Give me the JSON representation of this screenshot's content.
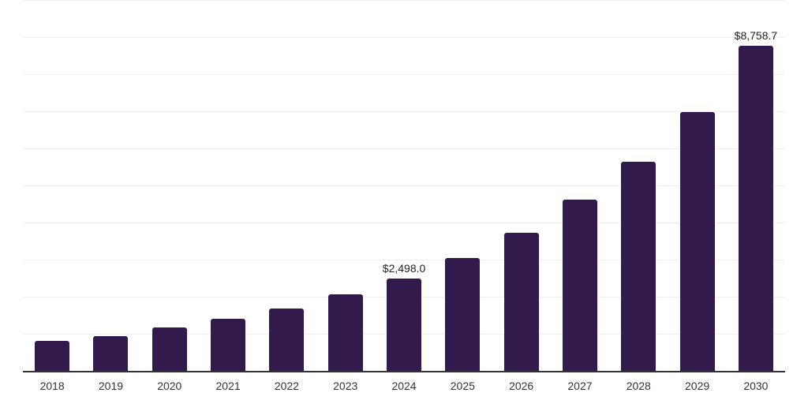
{
  "chart_data": {
    "type": "bar",
    "title": "",
    "xlabel": "",
    "ylabel": "",
    "categories": [
      "2018",
      "2019",
      "2020",
      "2021",
      "2022",
      "2023",
      "2024",
      "2025",
      "2026",
      "2027",
      "2028",
      "2029",
      "2030"
    ],
    "values": [
      810,
      940,
      1170,
      1410,
      1690,
      2070,
      2498.0,
      3050,
      3730,
      4610,
      5650,
      6980,
      8758.7
    ],
    "data_labels": [
      "",
      "",
      "",
      "",
      "",
      "",
      "$2,498.0",
      "",
      "",
      "",
      "",
      "",
      "$8,758.7"
    ],
    "ylim": [
      0,
      10000
    ],
    "gridline_interval": 1000,
    "grid": true,
    "y_tick_labels_visible": false,
    "legend_position": "none",
    "colors": {
      "bar": "#331a4d",
      "axis_line": "#333333",
      "gridline": "#efefef",
      "data_label_text": "#222222",
      "tick_label_text": "#333333",
      "background": "#ffffff"
    }
  }
}
